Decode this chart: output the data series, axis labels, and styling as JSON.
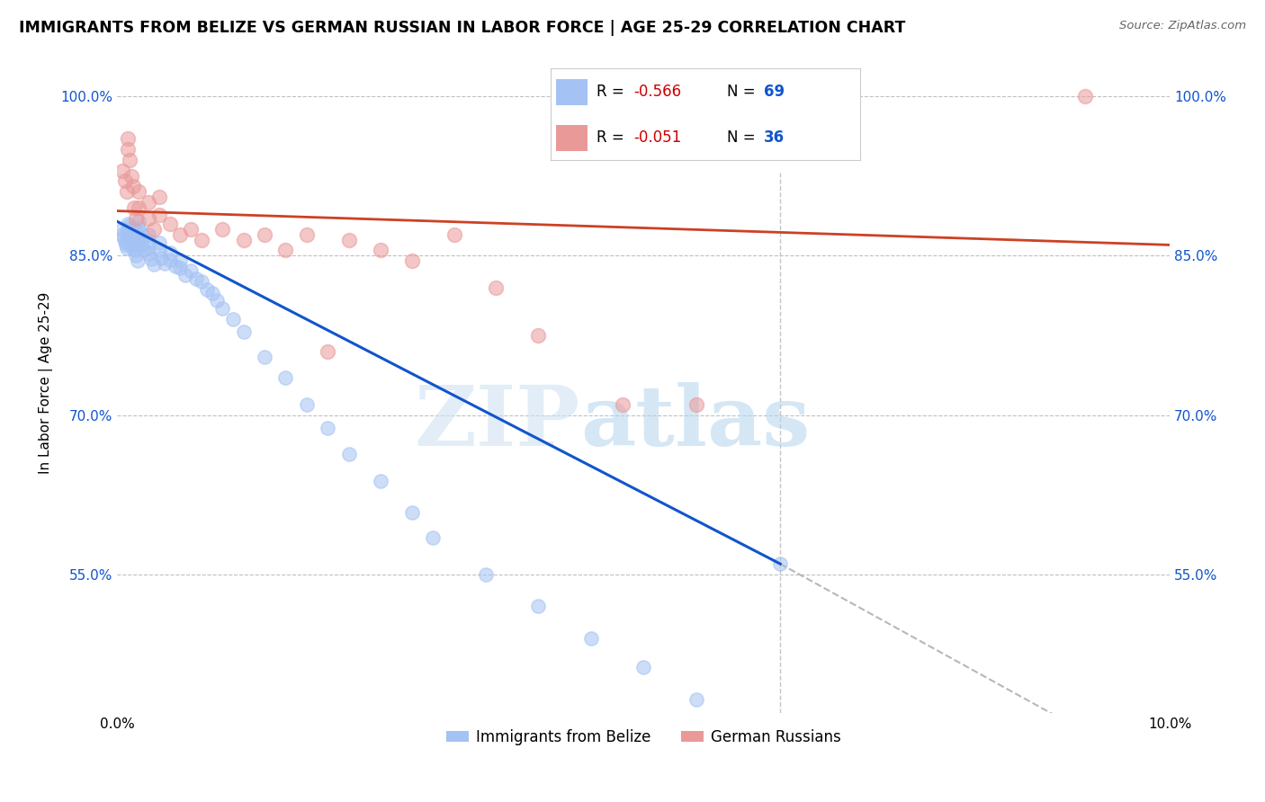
{
  "title": "IMMIGRANTS FROM BELIZE VS GERMAN RUSSIAN IN LABOR FORCE | AGE 25-29 CORRELATION CHART",
  "source": "Source: ZipAtlas.com",
  "ylabel": "In Labor Force | Age 25-29",
  "xlim": [
    0.0,
    0.1
  ],
  "ylim": [
    0.42,
    1.04
  ],
  "ytick_vals": [
    0.55,
    0.7,
    0.85,
    1.0
  ],
  "ytick_labels": [
    "55.0%",
    "70.0%",
    "85.0%",
    "100.0%"
  ],
  "xtick_vals": [
    0.0,
    0.02,
    0.04,
    0.06,
    0.08,
    0.1
  ],
  "xtick_labels": [
    "0.0%",
    "",
    "",
    "",
    "",
    "10.0%"
  ],
  "legend_R_belize": "-0.566",
  "legend_N_belize": "69",
  "legend_R_german": "-0.051",
  "legend_N_german": "36",
  "color_belize": "#a4c2f4",
  "color_german": "#ea9999",
  "color_belize_line": "#1155cc",
  "color_german_line": "#cc4125",
  "color_dashed": "#b7b7b7",
  "watermark_zip": "ZIP",
  "watermark_atlas": "atlas",
  "belize_x": [
    0.0005,
    0.0005,
    0.0006,
    0.0007,
    0.0008,
    0.0009,
    0.001,
    0.001,
    0.001,
    0.001,
    0.0012,
    0.0012,
    0.0013,
    0.0013,
    0.0014,
    0.0015,
    0.0015,
    0.0016,
    0.0016,
    0.0017,
    0.0018,
    0.0019,
    0.002,
    0.002,
    0.002,
    0.002,
    0.0022,
    0.0022,
    0.0023,
    0.0025,
    0.003,
    0.003,
    0.003,
    0.003,
    0.0032,
    0.0035,
    0.004,
    0.004,
    0.0042,
    0.0045,
    0.005,
    0.005,
    0.0055,
    0.006,
    0.006,
    0.0065,
    0.007,
    0.0075,
    0.008,
    0.0085,
    0.009,
    0.0095,
    0.01,
    0.011,
    0.012,
    0.014,
    0.016,
    0.018,
    0.02,
    0.022,
    0.025,
    0.028,
    0.03,
    0.035,
    0.04,
    0.045,
    0.05,
    0.055,
    0.063
  ],
  "belize_y": [
    0.875,
    0.87,
    0.867,
    0.863,
    0.86,
    0.857,
    0.88,
    0.875,
    0.87,
    0.865,
    0.878,
    0.872,
    0.868,
    0.862,
    0.858,
    0.876,
    0.87,
    0.866,
    0.86,
    0.855,
    0.85,
    0.845,
    0.882,
    0.876,
    0.87,
    0.864,
    0.872,
    0.866,
    0.86,
    0.855,
    0.87,
    0.864,
    0.858,
    0.852,
    0.847,
    0.842,
    0.862,
    0.855,
    0.848,
    0.843,
    0.853,
    0.846,
    0.84,
    0.845,
    0.838,
    0.832,
    0.836,
    0.828,
    0.826,
    0.818,
    0.815,
    0.808,
    0.8,
    0.79,
    0.778,
    0.755,
    0.735,
    0.71,
    0.688,
    0.663,
    0.638,
    0.608,
    0.585,
    0.55,
    0.52,
    0.49,
    0.463,
    0.432,
    0.56
  ],
  "german_x": [
    0.0005,
    0.0007,
    0.0009,
    0.001,
    0.001,
    0.0012,
    0.0013,
    0.0015,
    0.0016,
    0.0018,
    0.002,
    0.002,
    0.003,
    0.003,
    0.0035,
    0.004,
    0.004,
    0.005,
    0.006,
    0.007,
    0.008,
    0.01,
    0.012,
    0.014,
    0.016,
    0.018,
    0.02,
    0.022,
    0.025,
    0.028,
    0.032,
    0.036,
    0.04,
    0.048,
    0.055,
    0.092
  ],
  "german_y": [
    0.93,
    0.92,
    0.91,
    0.96,
    0.95,
    0.94,
    0.925,
    0.915,
    0.895,
    0.885,
    0.91,
    0.895,
    0.9,
    0.885,
    0.875,
    0.905,
    0.888,
    0.88,
    0.87,
    0.875,
    0.865,
    0.875,
    0.865,
    0.87,
    0.855,
    0.87,
    0.76,
    0.865,
    0.855,
    0.845,
    0.87,
    0.82,
    0.775,
    0.71,
    0.71,
    1.0
  ],
  "belize_line_x": [
    0.0,
    0.063
  ],
  "belize_line_y": [
    0.882,
    0.56
  ],
  "german_line_x": [
    0.0,
    0.1
  ],
  "german_line_y": [
    0.892,
    0.86
  ],
  "dashed_line_x": [
    0.063,
    0.1
  ],
  "dashed_line_y": [
    0.56,
    0.358
  ],
  "vline_x": 0.063
}
